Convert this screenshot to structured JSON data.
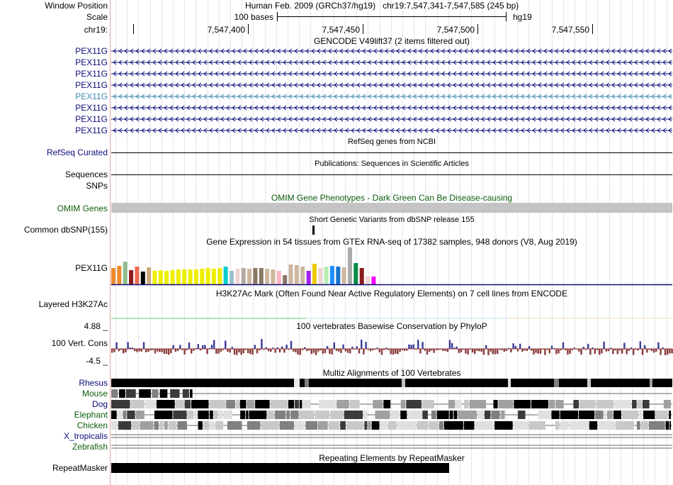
{
  "header": {
    "window_position_label": "Window Position",
    "window_position_value": "Human Feb. 2009 (GRCh37/hg19)   chr19:7,547,341-7,547,585 (245 bp)",
    "scale_label": "Scale",
    "scale_text": "100 bases",
    "assembly": "hg19",
    "chrom_label": "chr19:",
    "ticks": [
      "7,547,400",
      "7,547,450",
      "7,547,500",
      "7,547,550"
    ]
  },
  "tracks": {
    "gencode": {
      "title": "GENCODE V49lift37 (2 items filtered out)",
      "genes": [
        {
          "name": "PEX11G",
          "color": "#0c0c78"
        },
        {
          "name": "PEX11G",
          "color": "#0c0c78"
        },
        {
          "name": "PEX11G",
          "color": "#0c0c78"
        },
        {
          "name": "PEX11G",
          "color": "#0c0c78"
        },
        {
          "name": "PEX11G",
          "color": "#3d8ab0"
        },
        {
          "name": "PEX11G",
          "color": "#0c0c78"
        },
        {
          "name": "PEX11G",
          "color": "#0c0c78"
        },
        {
          "name": "PEX11G",
          "color": "#0c0c78"
        }
      ]
    },
    "refseq": {
      "label": "RefSeq Curated",
      "title": "RefSeq genes from NCBI"
    },
    "publications": {
      "label": "Sequences",
      "title": "Publications: Sequences in Scientific Articles"
    },
    "snps": {
      "label": "SNPs"
    },
    "omim": {
      "label": "OMIM Genes",
      "title": "OMIM Gene Phenotypes - Dark Green Can Be Disease-causing",
      "color": "#0b5d0b"
    },
    "dbsnp": {
      "label": "Common dbSNP(155)",
      "title": "Short Genetic Variants from dbSNP release 155"
    },
    "gtex": {
      "label": "PEX11G",
      "title": "Gene Expression in 54 tissues from GTEx RNA-seq of 17382 samples, 948 donors (V8, Aug 2019)",
      "bars": [
        {
          "v": 0.45,
          "c": "#f08c2c"
        },
        {
          "v": 0.5,
          "c": "#f08c2c"
        },
        {
          "v": 0.62,
          "c": "#8fbc8f"
        },
        {
          "v": 0.38,
          "c": "#8b1a1a"
        },
        {
          "v": 0.48,
          "c": "#ee6a50"
        },
        {
          "v": 0.34,
          "c": "#000000"
        },
        {
          "v": 0.46,
          "c": "#cdaa7d"
        },
        {
          "v": 0.37,
          "c": "#eeee00"
        },
        {
          "v": 0.38,
          "c": "#eeee00"
        },
        {
          "v": 0.37,
          "c": "#eeee00"
        },
        {
          "v": 0.38,
          "c": "#eeee00"
        },
        {
          "v": 0.4,
          "c": "#eeee00"
        },
        {
          "v": 0.41,
          "c": "#eeee00"
        },
        {
          "v": 0.41,
          "c": "#eeee00"
        },
        {
          "v": 0.41,
          "c": "#eeee00"
        },
        {
          "v": 0.43,
          "c": "#eeee00"
        },
        {
          "v": 0.44,
          "c": "#eeee00"
        },
        {
          "v": 0.42,
          "c": "#eeee00"
        },
        {
          "v": 0.44,
          "c": "#eeee00"
        },
        {
          "v": 0.48,
          "c": "#00cdcd"
        },
        {
          "v": 0.36,
          "c": "#9ac0cd"
        },
        {
          "v": 0.42,
          "c": "#eed5d2"
        },
        {
          "v": 0.44,
          "c": "#b3a9a0"
        },
        {
          "v": 0.42,
          "c": "#cdb79e"
        },
        {
          "v": 0.44,
          "c": "#8b7765"
        },
        {
          "v": 0.44,
          "c": "#8b7765"
        },
        {
          "v": 0.42,
          "c": "#cdb79e"
        },
        {
          "v": 0.41,
          "c": "#cdb79e"
        },
        {
          "v": 0.36,
          "c": "#ffb6c1"
        },
        {
          "v": 0.25,
          "c": "#8b7765"
        },
        {
          "v": 0.54,
          "c": "#cdb79e"
        },
        {
          "v": 0.52,
          "c": "#cdb79e"
        },
        {
          "v": 0.48,
          "c": "#cdb79e"
        },
        {
          "v": 0.36,
          "c": "#a020f0"
        },
        {
          "v": 0.56,
          "c": "#eec900"
        },
        {
          "v": 0.44,
          "c": "#eed5d2"
        },
        {
          "v": 0.48,
          "c": "#b4eeb4"
        },
        {
          "v": 0.5,
          "c": "#1e90ff"
        },
        {
          "v": 0.48,
          "c": "#1874cd"
        },
        {
          "v": 0.46,
          "c": "#cdb79e"
        },
        {
          "v": 1.0,
          "c": "#aaaaaa"
        },
        {
          "v": 0.58,
          "c": "#008b45"
        },
        {
          "v": 0.44,
          "c": "#8b1a1a"
        },
        {
          "v": 0.22,
          "c": "#eed5d2"
        },
        {
          "v": 0.22,
          "c": "#ff00ff"
        }
      ]
    },
    "h3k27ac": {
      "label": "Layered H3K27Ac",
      "title": "H3K27Ac Mark (Often Found Near Active Regulatory Elements) on 7 cell lines from ENCODE"
    },
    "cons": {
      "label": "100 Vert. Cons",
      "title": "100 vertebrates Basewise Conservation by PhyloP",
      "max": "4.88 _",
      "min": "-4.5 _",
      "pos_color": "#3a3a9a",
      "neg_color": "#8b3a3a",
      "title_color": "#3a3a9a"
    },
    "multiz": {
      "title": "Multiz Alignments of 100 Vertebrates",
      "species": [
        {
          "name": "Rhesus",
          "color": "#0c0c78"
        },
        {
          "name": "Mouse",
          "color": "#0b5d0b"
        },
        {
          "name": "Dog",
          "color": "#0c0c78"
        },
        {
          "name": "Elephant",
          "color": "#0b5d0b"
        },
        {
          "name": "Chicken",
          "color": "#0b5d0b"
        },
        {
          "name": "X_tropicalis",
          "color": "#0c0c78"
        },
        {
          "name": "Zebrafish",
          "color": "#0b5d0b"
        }
      ]
    },
    "repeatmasker": {
      "label": "RepeatMasker",
      "title": "Repeating Elements by RepeatMasker"
    }
  }
}
